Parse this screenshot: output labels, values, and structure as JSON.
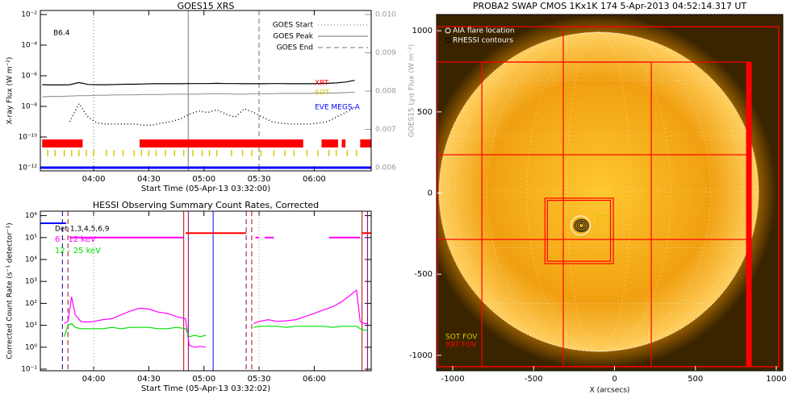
{
  "chart_data": [
    {
      "type": "line",
      "title": "GOES15 XRS",
      "xlabel": "Start Time (05-Apr-13 03:32:00)",
      "ylabel": "X-ray Flux (W m⁻²)",
      "y2label": "GOES15 Lyα Flux (W m⁻²)",
      "log_y": true,
      "annotation": "B6.4",
      "xlim": [
        211,
        391
      ],
      "xticks": [
        {
          "value": 240,
          "label": "04:00"
        },
        {
          "value": 270,
          "label": "04:30"
        },
        {
          "value": 300,
          "label": "05:00"
        },
        {
          "value": 330,
          "label": "05:30"
        },
        {
          "value": 360,
          "label": "06:00"
        }
      ],
      "ylim": [
        1e-12,
        0.01
      ],
      "yticks": [
        {
          "value": 1e-12,
          "label": "10⁻¹²"
        },
        {
          "value": 1e-10,
          "label": "10⁻¹⁰"
        },
        {
          "value": 1e-08,
          "label": "10⁻⁸"
        },
        {
          "value": 1e-06,
          "label": "10⁻⁶"
        },
        {
          "value": 0.0001,
          "label": "10⁻⁴"
        },
        {
          "value": 0.01,
          "label": "10⁻²"
        }
      ],
      "y2lim": [
        0.006,
        0.01
      ],
      "y2ticks": [
        0.006,
        0.007,
        0.008,
        0.009,
        {
          "value": 0.01,
          "label": "0.010"
        }
      ],
      "x": [
        212,
        217,
        222,
        227,
        232,
        237,
        242,
        247,
        252,
        257,
        262,
        267,
        272,
        277,
        282,
        287,
        292,
        297,
        302,
        307,
        312,
        317,
        322,
        327,
        332,
        337,
        342,
        347,
        352,
        357,
        362,
        367,
        372,
        377,
        382
      ],
      "series": [
        {
          "color": "#000000",
          "style": "solid",
          "values": [
            2.6e-07,
            2.5e-07,
            2.5e-07,
            2.6e-07,
            3.6e-07,
            2.7e-07,
            2.6e-07,
            2.6e-07,
            2.7e-07,
            2.8e-07,
            2.8e-07,
            2.9e-07,
            3e-07,
            3e-07,
            3e-07,
            3e-07,
            3.1e-07,
            3.1e-07,
            3.1e-07,
            3.2e-07,
            3.1e-07,
            3.1e-07,
            3e-07,
            3e-07,
            3e-07,
            3.1e-07,
            3.1e-07,
            3e-07,
            3e-07,
            3e-07,
            3.1e-07,
            3.2e-07,
            3.4e-07,
            3.9e-07,
            5e-07
          ]
        },
        {
          "color": "#999999",
          "style": "solid",
          "axis": "y2",
          "values": [
            0.00785,
            0.00786,
            0.00786,
            0.00787,
            0.00788,
            0.00788,
            0.00789,
            0.00789,
            0.0079,
            0.0079,
            0.0079,
            0.00791,
            0.00791,
            0.00791,
            0.00792,
            0.00792,
            0.00792,
            0.00792,
            0.00793,
            0.00793,
            0.00793,
            0.00792,
            0.00792,
            0.00793,
            0.00793,
            0.00793,
            0.00794,
            0.00794,
            0.00794,
            0.00794,
            0.00795,
            0.00795,
            0.00795,
            0.00796,
            0.00797
          ]
        },
        {
          "color": "#000000",
          "style": "dotted",
          "values": [
            null,
            null,
            null,
            1e-09,
            1.5e-08,
            2e-09,
            8e-10,
            7e-10,
            7e-10,
            7e-10,
            7e-10,
            6e-10,
            6e-10,
            8e-10,
            1e-09,
            1.5e-09,
            3e-09,
            5e-09,
            4e-09,
            6e-09,
            3e-09,
            2e-09,
            7e-09,
            4e-09,
            2e-09,
            1e-09,
            8e-10,
            7e-10,
            7e-10,
            7e-10,
            8e-10,
            1e-09,
            2e-09,
            4e-09,
            8e-09
          ]
        }
      ],
      "events": [
        {
          "name": "GOES Start",
          "x": 240,
          "style": "dotted",
          "color": "#a0a0a0"
        },
        {
          "name": "GOES Peak",
          "x": 291.5,
          "style": "solid",
          "color": "#a0a0a0"
        },
        {
          "name": "GOES End",
          "x": 330,
          "style": "dashed",
          "color": "#a0a0a0"
        }
      ],
      "coverage": [
        {
          "name": "XRT",
          "color": "#ff0000",
          "intervals": [
            [
              212,
              234
            ],
            [
              265,
              354
            ],
            [
              364,
              373
            ],
            [
              375,
              377
            ],
            [
              385,
              391
            ]
          ]
        },
        {
          "name": "SOT",
          "color": "#d8c800",
          "times": [
            215,
            219,
            224,
            228,
            232,
            236,
            240,
            247,
            251,
            256,
            262,
            266,
            270,
            274,
            279,
            284,
            289,
            294,
            299,
            303,
            307,
            315,
            321,
            326,
            331,
            338,
            344,
            349,
            356,
            362,
            368,
            372,
            378,
            383
          ]
        },
        {
          "name": "EVE MEGS-A",
          "color": "#0000ff",
          "intervals": [
            [
              211,
              391
            ]
          ]
        }
      ]
    },
    {
      "type": "line",
      "title": "HESSI Observing Summary Count Rates, Corrected",
      "xlabel": "Start Time (05-Apr-13 03:32:02)",
      "ylabel": "Corrected Count Rate (s⁻¹ detector⁻¹)",
      "log_y": true,
      "annotation": "Det 1,3,4,5,6,9",
      "xlim": [
        211,
        391
      ],
      "xticks": [
        {
          "value": 240,
          "label": "04:00"
        },
        {
          "value": 270,
          "label": "04:30"
        },
        {
          "value": 300,
          "label": "05:00"
        },
        {
          "value": 330,
          "label": "05:30"
        },
        {
          "value": 360,
          "label": "06:00"
        }
      ],
      "ylim": [
        0.1,
        1600000
      ],
      "yticks": [
        {
          "value": 0.1,
          "label": "10⁻¹"
        },
        {
          "value": 1,
          "label": "10⁰"
        },
        {
          "value": 10,
          "label": "10¹"
        },
        {
          "value": 100,
          "label": "10²"
        },
        {
          "value": 1000,
          "label": "10³"
        },
        {
          "value": 10000,
          "label": "10⁴"
        },
        {
          "value": 100000,
          "label": "10⁵"
        },
        {
          "value": 1000000,
          "label": "10⁶"
        }
      ],
      "x": [
        224,
        226,
        228,
        230,
        233,
        236,
        240,
        245,
        250,
        255,
        260,
        265,
        270,
        275,
        280,
        285,
        290,
        292,
        295,
        298,
        301,
        304,
        307,
        310,
        313,
        316,
        319,
        322,
        325,
        327,
        330,
        335,
        340,
        345,
        350,
        355,
        360,
        365,
        370,
        375,
        380,
        383,
        385,
        387,
        389
      ],
      "series": [
        {
          "name": "6 - 12 keV",
          "color": "#ff00ff",
          "style": "solid",
          "values": [
            12,
            15,
            200,
            30,
            15,
            14,
            15,
            18,
            20,
            30,
            45,
            60,
            55,
            40,
            35,
            25,
            20,
            1.2,
            1,
            1.1,
            1,
            null,
            null,
            null,
            null,
            null,
            null,
            null,
            null,
            12,
            15,
            18,
            15,
            16,
            18,
            25,
            35,
            50,
            70,
            120,
            250,
            400,
            15,
            12,
            12
          ]
        },
        {
          "name": "12 - 25 keV",
          "color": "#00e000",
          "style": "solid",
          "values": [
            3,
            10,
            12,
            8,
            7,
            7,
            7,
            7,
            8,
            7,
            8,
            8,
            8,
            7,
            7,
            8,
            7,
            3,
            3.5,
            3,
            3.5,
            null,
            null,
            null,
            null,
            null,
            null,
            null,
            null,
            8,
            9,
            9,
            9,
            8,
            9,
            9,
            9,
            9,
            8,
            9,
            9,
            9,
            7,
            6,
            6
          ]
        }
      ],
      "segments": [
        {
          "color": "#0000ff",
          "y": 450000,
          "x": [
            211,
            225
          ]
        },
        {
          "color": "#ff00ff",
          "y": 100000,
          "x": [
            227,
            289
          ]
        },
        {
          "color": "#ff0000",
          "y": 160000,
          "x": [
            290,
            323
          ]
        },
        {
          "color": "#ff00ff",
          "y": 100000,
          "x": [
            328,
            330
          ]
        },
        {
          "color": "#ff00ff",
          "y": 100000,
          "x": [
            333,
            338
          ]
        },
        {
          "color": "#ff00ff",
          "y": 100000,
          "x": [
            368,
            385
          ]
        },
        {
          "color": "#ff0000",
          "y": 160000,
          "x": [
            386,
            391
          ]
        }
      ],
      "vlines": [
        {
          "x": 223,
          "color": "#000080",
          "style": "dashed"
        },
        {
          "x": 226,
          "color": "#c00000",
          "style": "dashed"
        },
        {
          "x": 289,
          "color": "#c00000",
          "style": "solid"
        },
        {
          "x": 291.5,
          "color": "#800080",
          "style": "solid"
        },
        {
          "x": 305,
          "color": "#0000ff",
          "style": "solid"
        },
        {
          "x": 323,
          "color": "#800080",
          "style": "dashed"
        },
        {
          "x": 326,
          "color": "#c00000",
          "style": "dashed"
        },
        {
          "x": 386,
          "color": "#c00000",
          "style": "solid"
        },
        {
          "x": 389,
          "color": "#800080",
          "style": "solid"
        },
        {
          "x": 240,
          "color": "#a0a0a0",
          "style": "dotted"
        },
        {
          "x": 330,
          "color": "#a0a0a0",
          "style": "dotted"
        }
      ]
    },
    {
      "type": "image",
      "title": "PROBA2 SWAP CMOS 1Kx1K 174  5-Apr-2013 04:52:14.317 UT",
      "xlabel": "X (arcsecs)",
      "xlim": [
        -1100,
        1040
      ],
      "ylim": [
        -1095,
        1100
      ],
      "xticks": [
        -1000,
        -500,
        0,
        500,
        1000
      ],
      "yticks": [
        -1000,
        -500,
        0,
        500,
        1000
      ],
      "legend_items": [
        "AIA flare location",
        "RHESSI contours"
      ],
      "flare": [
        -210,
        -200
      ],
      "fov": [
        {
          "name": "SOT FOV",
          "color": "#d8c800",
          "boxes": [
            [
              -107,
              -32,
              -286,
              -140
            ]
          ],
          "filled": []
        },
        {
          "name": "XRT FOV",
          "color": "#ff0000",
          "boxes": [
            [
              -1095,
              1015,
              -1070,
              1025
            ],
            [
              -1095,
              835,
              -1070,
              807
            ],
            [
              -820,
              227,
              -1070,
              807
            ],
            [
              -317,
              1015,
              -1070,
              1025
            ],
            [
              -1095,
              835,
              -286,
              236
            ],
            [
              -430,
              -7,
              -435,
              -32
            ],
            [
              -415,
              -25,
              -420,
              -45
            ]
          ],
          "filled": [
            [
              813,
              848,
              -1070,
              807
            ]
          ]
        }
      ]
    }
  ]
}
